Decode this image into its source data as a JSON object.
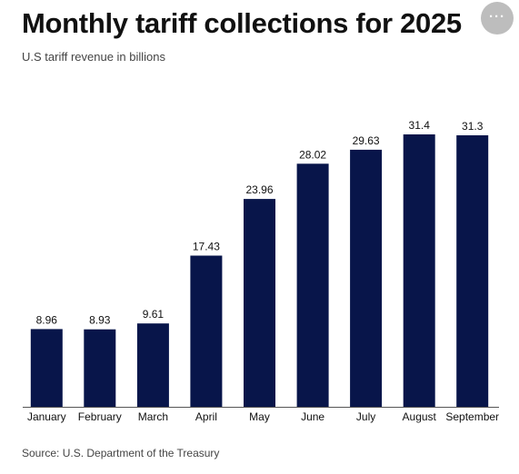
{
  "header": {
    "title": "Monthly tariff collections for 2025",
    "subtitle": "U.S tariff revenue in billions",
    "more_label": "···"
  },
  "footer": {
    "source": "Source: U.S. Department of the Treasury"
  },
  "colors": {
    "bar": "#08154a",
    "axis": "#555555",
    "text": "#111111"
  },
  "icons": {
    "more": "more-horizontal-icon"
  },
  "chart_data": {
    "type": "bar",
    "title": "Monthly tariff collections for 2025",
    "subtitle": "U.S tariff revenue in billions",
    "xlabel": "",
    "ylabel": "",
    "categories": [
      "January",
      "February",
      "March",
      "April",
      "May",
      "June",
      "July",
      "August",
      "September"
    ],
    "values": [
      8.96,
      8.93,
      9.61,
      17.43,
      23.96,
      28.02,
      29.63,
      31.4,
      31.3
    ],
    "value_labels": [
      "8.96",
      "8.93",
      "9.61",
      "17.43",
      "23.96",
      "28.02",
      "29.63",
      "31.4",
      "31.3"
    ],
    "ylim": [
      0,
      31.4
    ],
    "grid": false,
    "legend": "none",
    "data_labels": true
  }
}
